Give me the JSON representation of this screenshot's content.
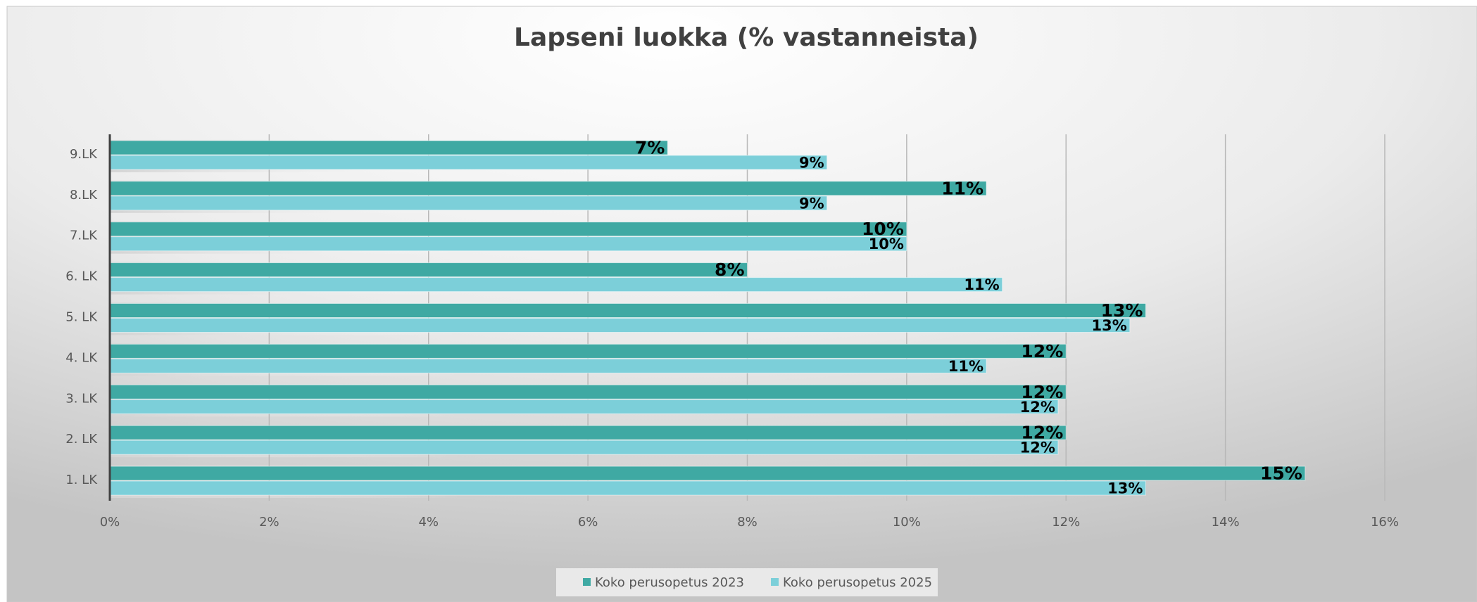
{
  "chart_data": {
    "type": "hbar",
    "title": "Lapseni luokka (% vastanneista)",
    "categories": [
      "9.LK",
      "8.LK",
      "7.LK",
      "6. LK",
      "5. LK",
      "4. LK",
      "3. LK",
      "2. LK",
      "1. LK"
    ],
    "series": [
      {
        "name": "Koko perusopetus 2023",
        "color": "#3fa9a3",
        "values": [
          7,
          11,
          10,
          8,
          13,
          12,
          12,
          12,
          15
        ],
        "value_labels": [
          "7%",
          "11%",
          "10%",
          "8%",
          "13%",
          "12%",
          "12%",
          "12%",
          "15%"
        ]
      },
      {
        "name": "Koko perusopetus 2025",
        "color": "#7ccfd9",
        "values": [
          9,
          9,
          10,
          11.2,
          12.8,
          11,
          11.9,
          11.9,
          13
        ],
        "value_labels": [
          "9%",
          "9%",
          "10%",
          "11%",
          "13%",
          "11%",
          "12%",
          "12%",
          "13%"
        ]
      }
    ],
    "xlim": [
      0,
      16
    ],
    "xticks": [
      {
        "value": 0,
        "label": "0%"
      },
      {
        "value": 2,
        "label": "2%"
      },
      {
        "value": 4,
        "label": "4%"
      },
      {
        "value": 6,
        "label": "6%"
      },
      {
        "value": 8,
        "label": "8%"
      },
      {
        "value": 10,
        "label": "10%"
      },
      {
        "value": 12,
        "label": "12%"
      },
      {
        "value": 14,
        "label": "14%"
      },
      {
        "value": 16,
        "label": "16%"
      }
    ],
    "grid": true,
    "legend": "bottom"
  }
}
